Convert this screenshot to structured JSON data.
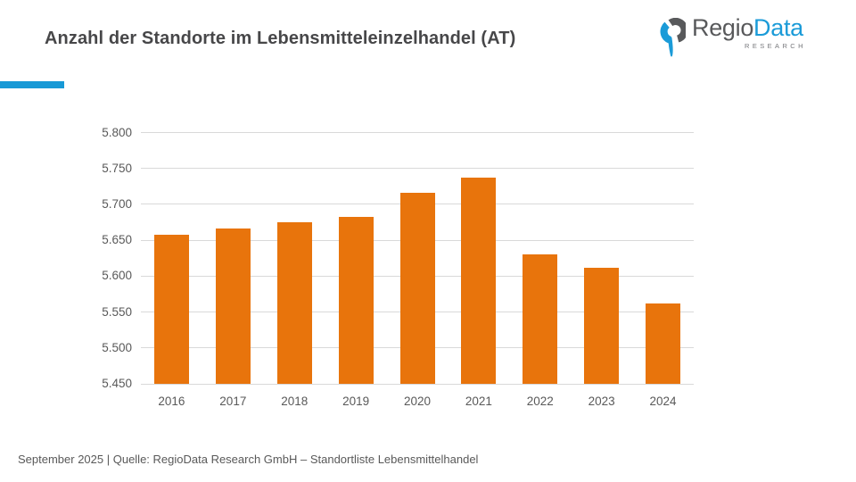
{
  "accent": {
    "bar_color": "#1799D6"
  },
  "logo": {
    "brand_primary": "Regio",
    "brand_secondary": "Data",
    "subtitle": "RESEARCH",
    "primary_color": "#58595B",
    "secondary_color": "#1B9BD8"
  },
  "footer": {
    "source": "September 2025 | Quelle: RegioData Research GmbH – Standortliste Lebensmittelhandel"
  },
  "chart_data": {
    "type": "bar",
    "title": "Anzahl der Standorte im Lebensmitteleinzelhandel (AT)",
    "categories": [
      "2016",
      "2017",
      "2018",
      "2019",
      "2020",
      "2021",
      "2022",
      "2023",
      "2024"
    ],
    "values": [
      5658,
      5666,
      5675,
      5682,
      5716,
      5737,
      5630,
      5612,
      5562
    ],
    "xlabel": "",
    "ylabel": "",
    "ylim": [
      5450,
      5800
    ],
    "ytick_step": 50,
    "ytick_labels": [
      "5.450",
      "5.500",
      "5.550",
      "5.600",
      "5.650",
      "5.700",
      "5.750",
      "5.800"
    ],
    "bar_color": "#E8740C",
    "gridline_color": "#D9D9D9",
    "grid": true,
    "legend": false
  }
}
